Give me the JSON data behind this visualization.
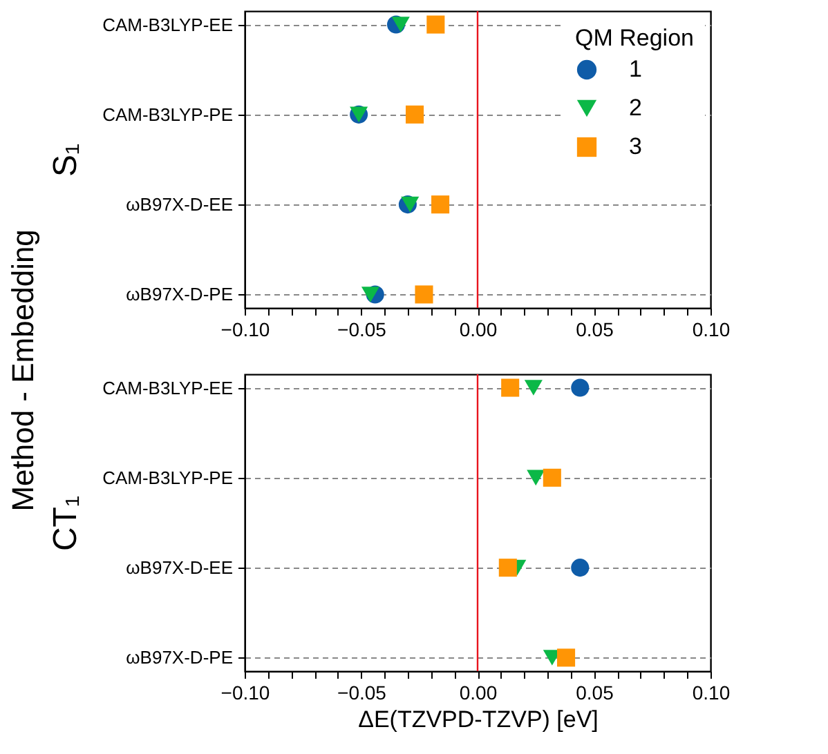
{
  "chart_data": [
    {
      "type": "scatter",
      "orientation": "horizontal",
      "ylabel": "S₁",
      "annotations": [
        "Method - Embedding"
      ],
      "legend_title": "QM Region",
      "legend": "top right",
      "grid": "y",
      "categories": [
        "CAM-B3LYP-EE",
        "CAM-B3LYP-PE",
        "ωB97X-D-EE",
        "ωB97X-D-PE"
      ],
      "xlim": [
        -0.1,
        0.1
      ],
      "xticks": [
        {
          "value": -0.1,
          "label": "−0.10"
        },
        {
          "value": -0.09,
          "label": null
        },
        {
          "value": -0.08,
          "label": null
        },
        {
          "value": -0.07,
          "label": null
        },
        {
          "value": -0.06,
          "label": null
        },
        {
          "value": -0.05,
          "label": "−0.05"
        },
        {
          "value": -0.04,
          "label": null
        },
        {
          "value": -0.03,
          "label": null
        },
        {
          "value": -0.02,
          "label": null
        },
        {
          "value": -0.01,
          "label": null
        },
        {
          "value": 0,
          "label": "0.00"
        },
        {
          "value": 0.01,
          "label": null
        },
        {
          "value": 0.02,
          "label": null
        },
        {
          "value": 0.03,
          "label": null
        },
        {
          "value": 0.04,
          "label": null
        },
        {
          "value": 0.05,
          "label": "0.05"
        },
        {
          "value": 0.06,
          "label": null
        },
        {
          "value": 0.07,
          "label": null
        },
        {
          "value": 0.08,
          "label": null
        },
        {
          "value": 0.09,
          "label": null
        },
        {
          "value": 0.1,
          "label": "0.10"
        }
      ],
      "ref_lines": [
        {
          "axis": "x",
          "value": 0,
          "color": "#e8141e"
        }
      ],
      "series": [
        {
          "name": "1",
          "color": "#0f5ca8",
          "marker": "circle",
          "values": [
            -0.035,
            -0.051,
            -0.03,
            -0.044
          ]
        },
        {
          "name": "2",
          "color": "#0bb847",
          "marker": "triangle",
          "values": [
            -0.033,
            -0.051,
            -0.029,
            -0.046
          ]
        },
        {
          "name": "3",
          "color": "#ff9505",
          "marker": "square",
          "values": [
            -0.018,
            -0.027,
            -0.016,
            -0.023
          ]
        }
      ]
    },
    {
      "type": "scatter",
      "orientation": "horizontal",
      "ylabel": "CT₁",
      "xlabel": "ΔE(TZVPD-TZVP) [eV]",
      "grid": "y",
      "categories": [
        "CAM-B3LYP-EE",
        "CAM-B3LYP-PE",
        "ωB97X-D-EE",
        "ωB97X-D-PE"
      ],
      "xlim": [
        -0.1,
        0.1
      ],
      "xticks": [
        {
          "value": -0.1,
          "label": "−0.10"
        },
        {
          "value": -0.09,
          "label": null
        },
        {
          "value": -0.08,
          "label": null
        },
        {
          "value": -0.07,
          "label": null
        },
        {
          "value": -0.06,
          "label": null
        },
        {
          "value": -0.05,
          "label": "−0.05"
        },
        {
          "value": -0.04,
          "label": null
        },
        {
          "value": -0.03,
          "label": null
        },
        {
          "value": -0.02,
          "label": null
        },
        {
          "value": -0.01,
          "label": null
        },
        {
          "value": 0,
          "label": "0.00"
        },
        {
          "value": 0.01,
          "label": null
        },
        {
          "value": 0.02,
          "label": null
        },
        {
          "value": 0.03,
          "label": null
        },
        {
          "value": 0.04,
          "label": null
        },
        {
          "value": 0.05,
          "label": "0.05"
        },
        {
          "value": 0.06,
          "label": null
        },
        {
          "value": 0.07,
          "label": null
        },
        {
          "value": 0.08,
          "label": null
        },
        {
          "value": 0.09,
          "label": null
        },
        {
          "value": 0.1,
          "label": "0.10"
        }
      ],
      "ref_lines": [
        {
          "axis": "x",
          "value": 0,
          "color": "#e8141e"
        }
      ],
      "series": [
        {
          "name": "1",
          "color": "#0f5ca8",
          "marker": "circle",
          "values": [
            0.044,
            null,
            0.044,
            null
          ]
        },
        {
          "name": "2",
          "color": "#0bb847",
          "marker": "triangle",
          "values": [
            0.024,
            0.025,
            0.017,
            0.032
          ]
        },
        {
          "name": "3",
          "color": "#ff9505",
          "marker": "square",
          "values": [
            0.014,
            0.032,
            0.013,
            0.038
          ]
        }
      ]
    }
  ]
}
